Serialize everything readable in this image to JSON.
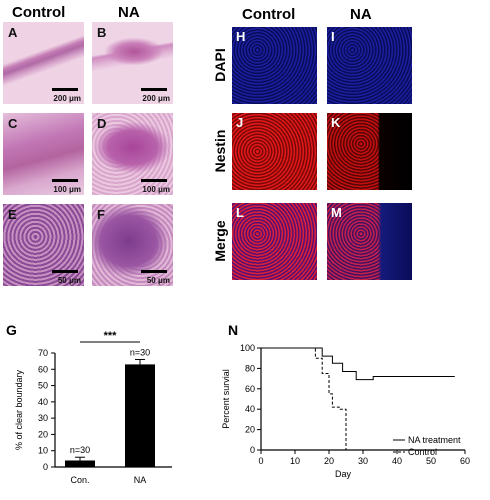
{
  "he_headers": {
    "control": "Control",
    "na": "NA"
  },
  "he_panels": [
    {
      "label": "A",
      "scale": "200 μm"
    },
    {
      "label": "B",
      "scale": "200 μm"
    },
    {
      "label": "C",
      "scale": "100 μm"
    },
    {
      "label": "D",
      "scale": "100 μm"
    },
    {
      "label": "E",
      "scale": "50 μm"
    },
    {
      "label": "F",
      "scale": "50 μm"
    }
  ],
  "fluor_headers": {
    "control": "Control",
    "na": "NA"
  },
  "fluor_rows": [
    "DAPI",
    "Nestin",
    "Merge"
  ],
  "fluor_panels": [
    "H",
    "I",
    "J",
    "K",
    "L",
    "M"
  ],
  "panel_g": {
    "label": "G",
    "significance": "***"
  },
  "panel_n": {
    "label": "N"
  },
  "chart_data": [
    {
      "type": "bar",
      "title": "",
      "ylabel": "% of clear boundary",
      "categories": [
        "Con.",
        "NA"
      ],
      "values": [
        4,
        63
      ],
      "errors": [
        2,
        3
      ],
      "n_labels": [
        "n=30",
        "n=30"
      ],
      "ylim": [
        0,
        70
      ],
      "yticks": [
        0,
        10,
        20,
        30,
        40,
        50,
        60,
        70
      ],
      "significance": "***",
      "color": "#000000"
    },
    {
      "type": "line",
      "title": "",
      "xlabel": "Day",
      "ylabel": "Percent survial",
      "xlim": [
        0,
        60
      ],
      "ylim": [
        0,
        100
      ],
      "xticks": [
        0,
        10,
        20,
        30,
        40,
        50,
        60
      ],
      "yticks": [
        0,
        20,
        40,
        60,
        80,
        100
      ],
      "legend_position": "bottom-right",
      "series": [
        {
          "name": "NA treatment",
          "style": "solid",
          "x": [
            0,
            18,
            18,
            21,
            21,
            24,
            24,
            28,
            28,
            33,
            33,
            57
          ],
          "y": [
            100,
            100,
            92,
            92,
            85,
            85,
            77,
            77,
            69,
            69,
            72,
            72
          ]
        },
        {
          "name": "Control",
          "style": "dashed",
          "x": [
            0,
            16,
            16,
            18,
            18,
            20,
            20,
            21,
            21,
            23,
            23,
            25,
            25
          ],
          "y": [
            100,
            100,
            90,
            90,
            75,
            75,
            55,
            55,
            42,
            42,
            40,
            40,
            0
          ]
        }
      ]
    }
  ]
}
